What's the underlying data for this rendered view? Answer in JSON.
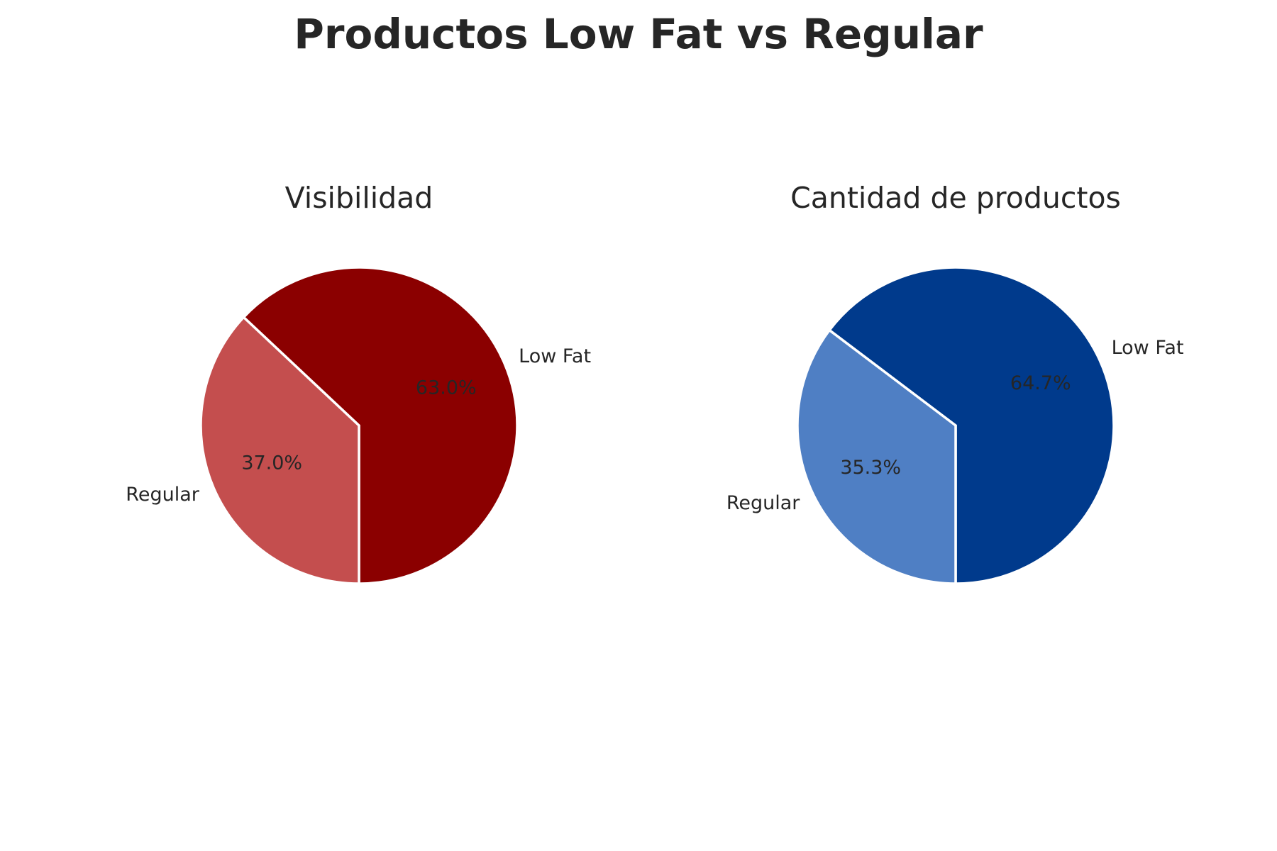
{
  "title": "Productos Low Fat vs Regular",
  "chart_data": [
    {
      "type": "pie",
      "title": "Visibilidad",
      "labels": [
        "Low Fat",
        "Regular"
      ],
      "values": [
        63.0,
        37.0
      ],
      "pct_labels": [
        "63.0%",
        "37.0%"
      ],
      "colors": [
        "#8b0000",
        "#c44e4e"
      ],
      "start_angle_deg": -90,
      "direction": "counterclockwise"
    },
    {
      "type": "pie",
      "title": "Cantidad de productos",
      "labels": [
        "Low Fat",
        "Regular"
      ],
      "values": [
        64.7,
        35.3
      ],
      "pct_labels": [
        "64.7%",
        "35.3%"
      ],
      "colors": [
        "#003a8c",
        "#4f7fc4"
      ],
      "start_angle_deg": -90,
      "direction": "counterclockwise"
    }
  ]
}
